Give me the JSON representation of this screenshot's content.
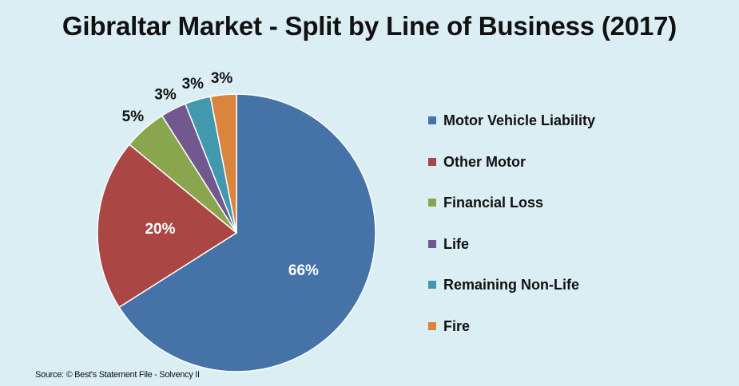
{
  "title": "Gibraltar Market - Split by Line of Business (2017)",
  "source": "Source: © Best's Statement File - Solvency II",
  "chart_data": {
    "type": "pie",
    "title": "Gibraltar Market - Split by Line of Business (2017)",
    "legend_position": "right",
    "slices": [
      {
        "label": "Motor Vehicle Liability",
        "value": 66,
        "display": "66%",
        "color": "#4572a7"
      },
      {
        "label": "Other Motor",
        "value": 20,
        "display": "20%",
        "color": "#aa4643"
      },
      {
        "label": "Financial Loss",
        "value": 5,
        "display": "5%",
        "color": "#89a54e"
      },
      {
        "label": "Life",
        "value": 3,
        "display": "3%",
        "color": "#71588f"
      },
      {
        "label": "Remaining Non-Life",
        "value": 3,
        "display": "3%",
        "color": "#4198af"
      },
      {
        "label": "Fire",
        "value": 3,
        "display": "3%",
        "color": "#db843d"
      }
    ]
  }
}
